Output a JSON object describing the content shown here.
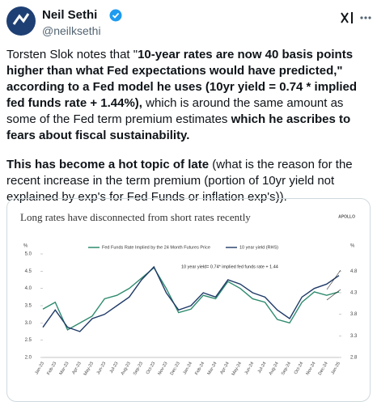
{
  "header": {
    "name": "Neil Sethi",
    "handle": "@neilksethi"
  },
  "post": {
    "paragraphs": [
      [
        {
          "text": "Torsten Slok notes that \"",
          "bold": false
        },
        {
          "text": "10-year rates are now 40 basis points higher than what Fed expectations would have predicted,\" according to a Fed model he uses (10yr yield = 0.74 * implied fed funds rate + 1.44%),",
          "bold": true
        },
        {
          "text": " which is around the same amount as some of the Fed term premium estimates ",
          "bold": false
        },
        {
          "text": "which he ascribes to fears about fiscal sustainability.",
          "bold": true
        }
      ],
      [
        {
          "text": "This has become a hot topic of late",
          "bold": true
        },
        {
          "text": " (what is the reason for the recent increase in the term premium (portion of 10yr yield not explained by exp's for Fed Funds or inflation exp's)).",
          "bold": false
        }
      ]
    ]
  },
  "chart_data": {
    "type": "line",
    "title": "Long rates have disconnected from short rates recently",
    "brand": "APOLLO",
    "annotation": "10 year yield= 0.74* implied fed funds rate + 1.44",
    "y_unit": "%",
    "y2_unit": "%",
    "categories": [
      "Jan-23",
      "Feb-23",
      "Mar-23",
      "Apr-23",
      "May-23",
      "Jun-23",
      "Jul-23",
      "Aug-23",
      "Sep-23",
      "Oct-23",
      "Nov-23",
      "Dec-23",
      "Jan-24",
      "Feb-24",
      "Mar-24",
      "Apr-24",
      "May-24",
      "Jun-24",
      "Jul-24",
      "Aug-24",
      "Sep-24",
      "Oct-24",
      "Nov-24",
      "Dec-24",
      "Jan-25"
    ],
    "series": [
      {
        "name": "Fed Funds Rate Implied by the 24 Month Futures Price",
        "color": "#2e8b6e",
        "values": [
          3.4,
          3.6,
          2.8,
          3.0,
          3.2,
          3.7,
          3.8,
          4.0,
          4.3,
          4.6,
          4.0,
          3.3,
          3.4,
          3.8,
          3.7,
          4.2,
          4.0,
          3.7,
          3.6,
          3.1,
          3.0,
          3.6,
          3.9,
          3.8,
          3.9
        ]
      },
      {
        "name": "10 year yield (RHS)",
        "color": "#1f3a68",
        "axis": "y2",
        "values": [
          3.5,
          3.9,
          3.5,
          3.4,
          3.7,
          3.8,
          4.0,
          4.2,
          4.6,
          4.9,
          4.3,
          3.9,
          4.0,
          4.3,
          4.2,
          4.6,
          4.5,
          4.3,
          4.2,
          3.9,
          3.7,
          4.2,
          4.4,
          4.5,
          4.7
        ]
      }
    ],
    "ylim": [
      2.0,
      5.0
    ],
    "yticks": [
      {
        "value": 2,
        "label": "2.0"
      },
      2.5,
      {
        "value": 3,
        "label": "3.0"
      },
      3.5,
      {
        "value": 4,
        "label": "4.0"
      },
      4.5,
      {
        "value": 5,
        "label": "5.0"
      }
    ],
    "y2lim": [
      2.8,
      5.2
    ],
    "y2ticks": [
      2.8,
      3.3,
      3.8,
      4.3,
      4.8
    ]
  }
}
